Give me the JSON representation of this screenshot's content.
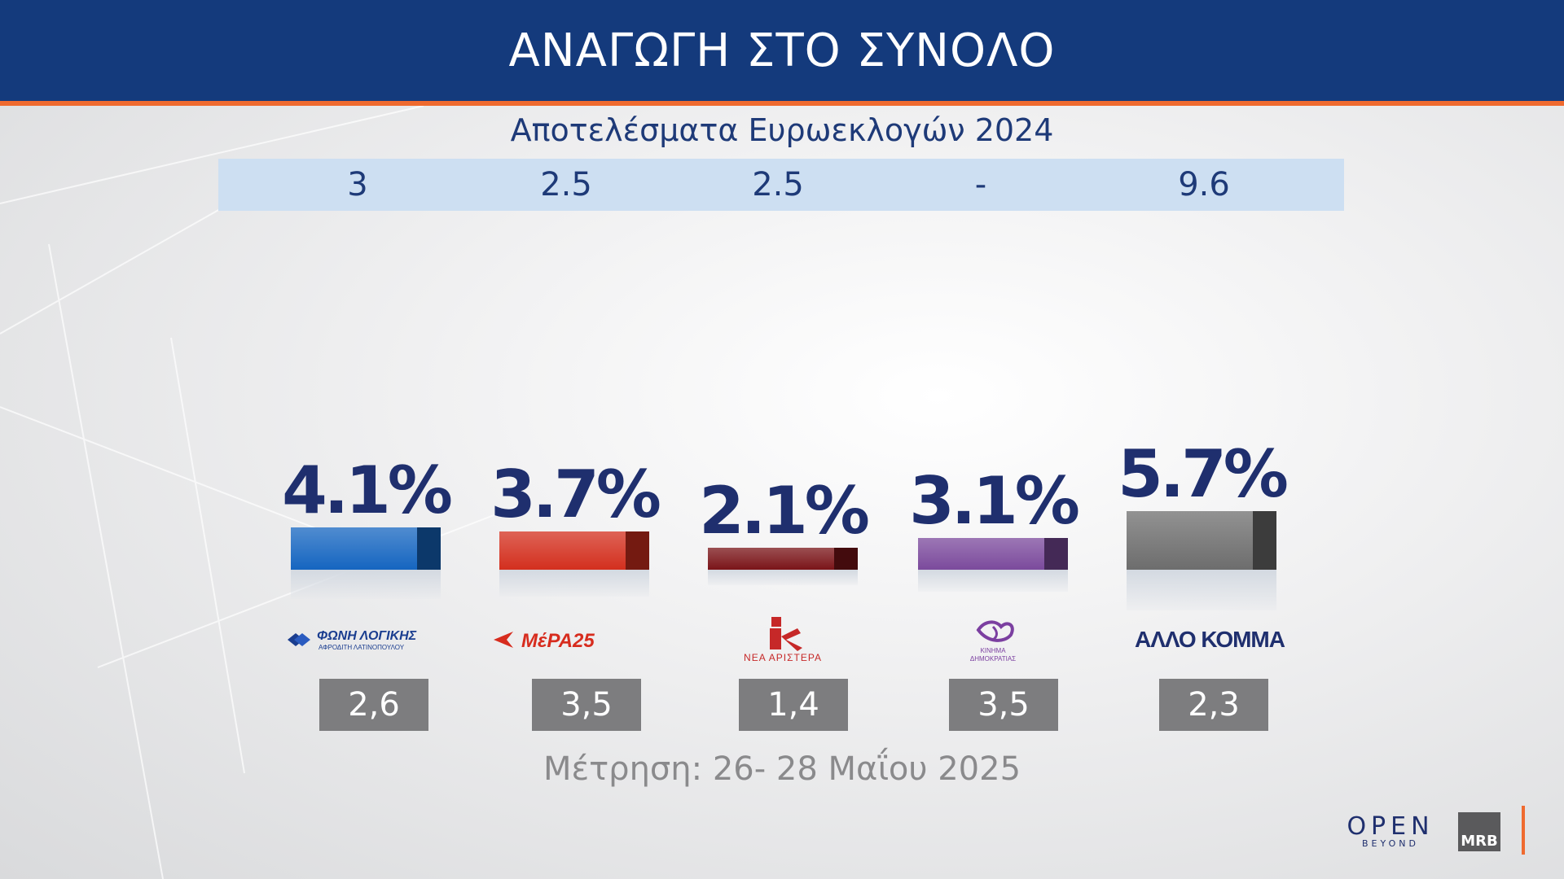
{
  "header": {
    "title": "ΑΝΑΓΩΓΗ ΣΤΟ ΣΥΝΟΛΟ"
  },
  "previous": {
    "subtitle": "Αποτελέσματα Ευρωεκλογών 2024",
    "values": [
      "3",
      "2.5",
      "2.5",
      "-",
      "9.6"
    ]
  },
  "chart_data": {
    "type": "bar",
    "title": "ΑΝΑΓΩΓΗ ΣΤΟ ΣΥΝΟΛΟ",
    "categories": [
      "ΦΩΝΗ ΛΟΓΙΚΗΣ",
      "ΜέΡΑ25",
      "ΝΕΑ ΑΡΙΣΤΕΡΑ",
      "ΚΙΝΗΜΑ ΔΗΜΟΚΡΑΤΙΑΣ",
      "ΑΛΛΟ ΚΟΜΜΑ"
    ],
    "values": [
      4.1,
      3.7,
      2.1,
      3.1,
      5.7
    ],
    "labels": [
      "4.1%",
      "3.7%",
      "2.1%",
      "3.1%",
      "5.7%"
    ],
    "colors": [
      "#1565c0",
      "#d32f1e",
      "#7a1418",
      "#7b4a9c",
      "#6d6d6d"
    ],
    "previous_poll": [
      "2,6",
      "3,5",
      "1,4",
      "3,5",
      "2,3"
    ],
    "ylim": [
      0,
      5.7
    ]
  },
  "logos": {
    "foni_logikis": {
      "line1": "ΦΩΝΗ ΛΟΓΙΚΗΣ",
      "line2": "ΑΦΡΟΔΙΤΗ ΛΑΤΙΝΟΠΟΥΛΟΥ"
    },
    "mera25": {
      "text": "ΜέΡΑ25"
    },
    "nea_aristera": {
      "text": "ΝΕΑ ΑΡΙΣΤΕΡΑ"
    },
    "kinima": {
      "line1": "ΚΙΝΗΜΑ",
      "line2": "ΔΗΜΟΚΡΑΤΙΑΣ"
    },
    "allo": {
      "text": "ΑΛΛΟ ΚΟΜΜΑ"
    }
  },
  "footer": {
    "date": "Μέτρηση: 26- 28 Μαΐου 2025"
  },
  "branding": {
    "open": "OPEN",
    "beyond": "BEYOND",
    "mrb": "MRB"
  }
}
